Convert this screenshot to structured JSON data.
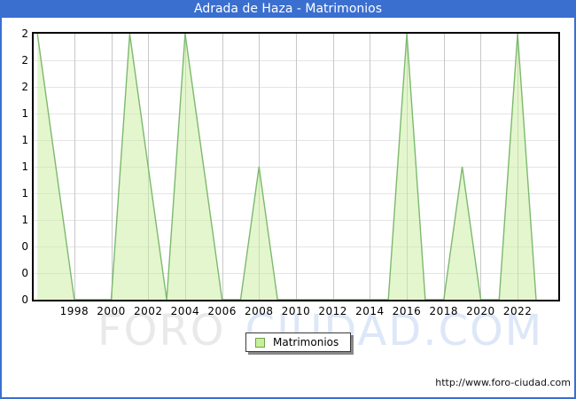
{
  "title": "Adrada de Haza - Matrimonios",
  "watermark": {
    "part1": "FORO",
    "part2": "CIUDAD.COM"
  },
  "legend": {
    "label": "Matrimonios"
  },
  "footer": {
    "url": "http://www.foro-ciudad.com"
  },
  "colors": {
    "titlebar_bg": "#3a6fd0",
    "frame_border": "#3a6fd0",
    "title_text": "#ffffff",
    "plot_border": "#000000",
    "grid_vertical": "#c8c8c8",
    "grid_horizontal": "#e4e4e8",
    "area_fill_rgba": "rgba(201,238,155,0.5)",
    "line_stroke": "#7cb96f",
    "legend_swatch_fill": "#c9ee9b",
    "legend_swatch_border": "#6da24e",
    "watermark_gray": "#e9e9e9",
    "watermark_blue": "#dde7f8"
  },
  "chart_data": {
    "type": "area",
    "title": "Adrada de Haza - Matrimonios",
    "series_name": "Matrimonios",
    "x": [
      1996,
      1997,
      1998,
      1999,
      2000,
      2001,
      2002,
      2003,
      2004,
      2005,
      2006,
      2007,
      2008,
      2009,
      2010,
      2011,
      2012,
      2013,
      2014,
      2015,
      2016,
      2017,
      2018,
      2019,
      2020,
      2021,
      2022,
      2023
    ],
    "values": [
      2,
      1,
      0,
      0,
      0,
      2,
      1,
      0,
      2,
      1,
      0,
      0,
      1,
      0,
      0,
      0,
      0,
      0,
      0,
      0,
      2,
      0,
      0,
      1,
      0,
      0,
      2,
      0
    ],
    "xlabel": "",
    "ylabel": "",
    "ylim": [
      0,
      2
    ],
    "y_tick_step": 0.2,
    "y_tick_labels_top_to_bottom": [
      "2",
      "2",
      "2",
      "1",
      "1",
      "1",
      "1",
      "1",
      "0",
      "0",
      "0"
    ],
    "x_tick_labels": [
      "1998",
      "2000",
      "2002",
      "2004",
      "2006",
      "2008",
      "2010",
      "2012",
      "2014",
      "2016",
      "2018",
      "2020",
      "2022"
    ],
    "x_range_rendered": [
      1995.8,
      2024.2
    ],
    "grid": true,
    "legend_position": "bottom-center"
  }
}
